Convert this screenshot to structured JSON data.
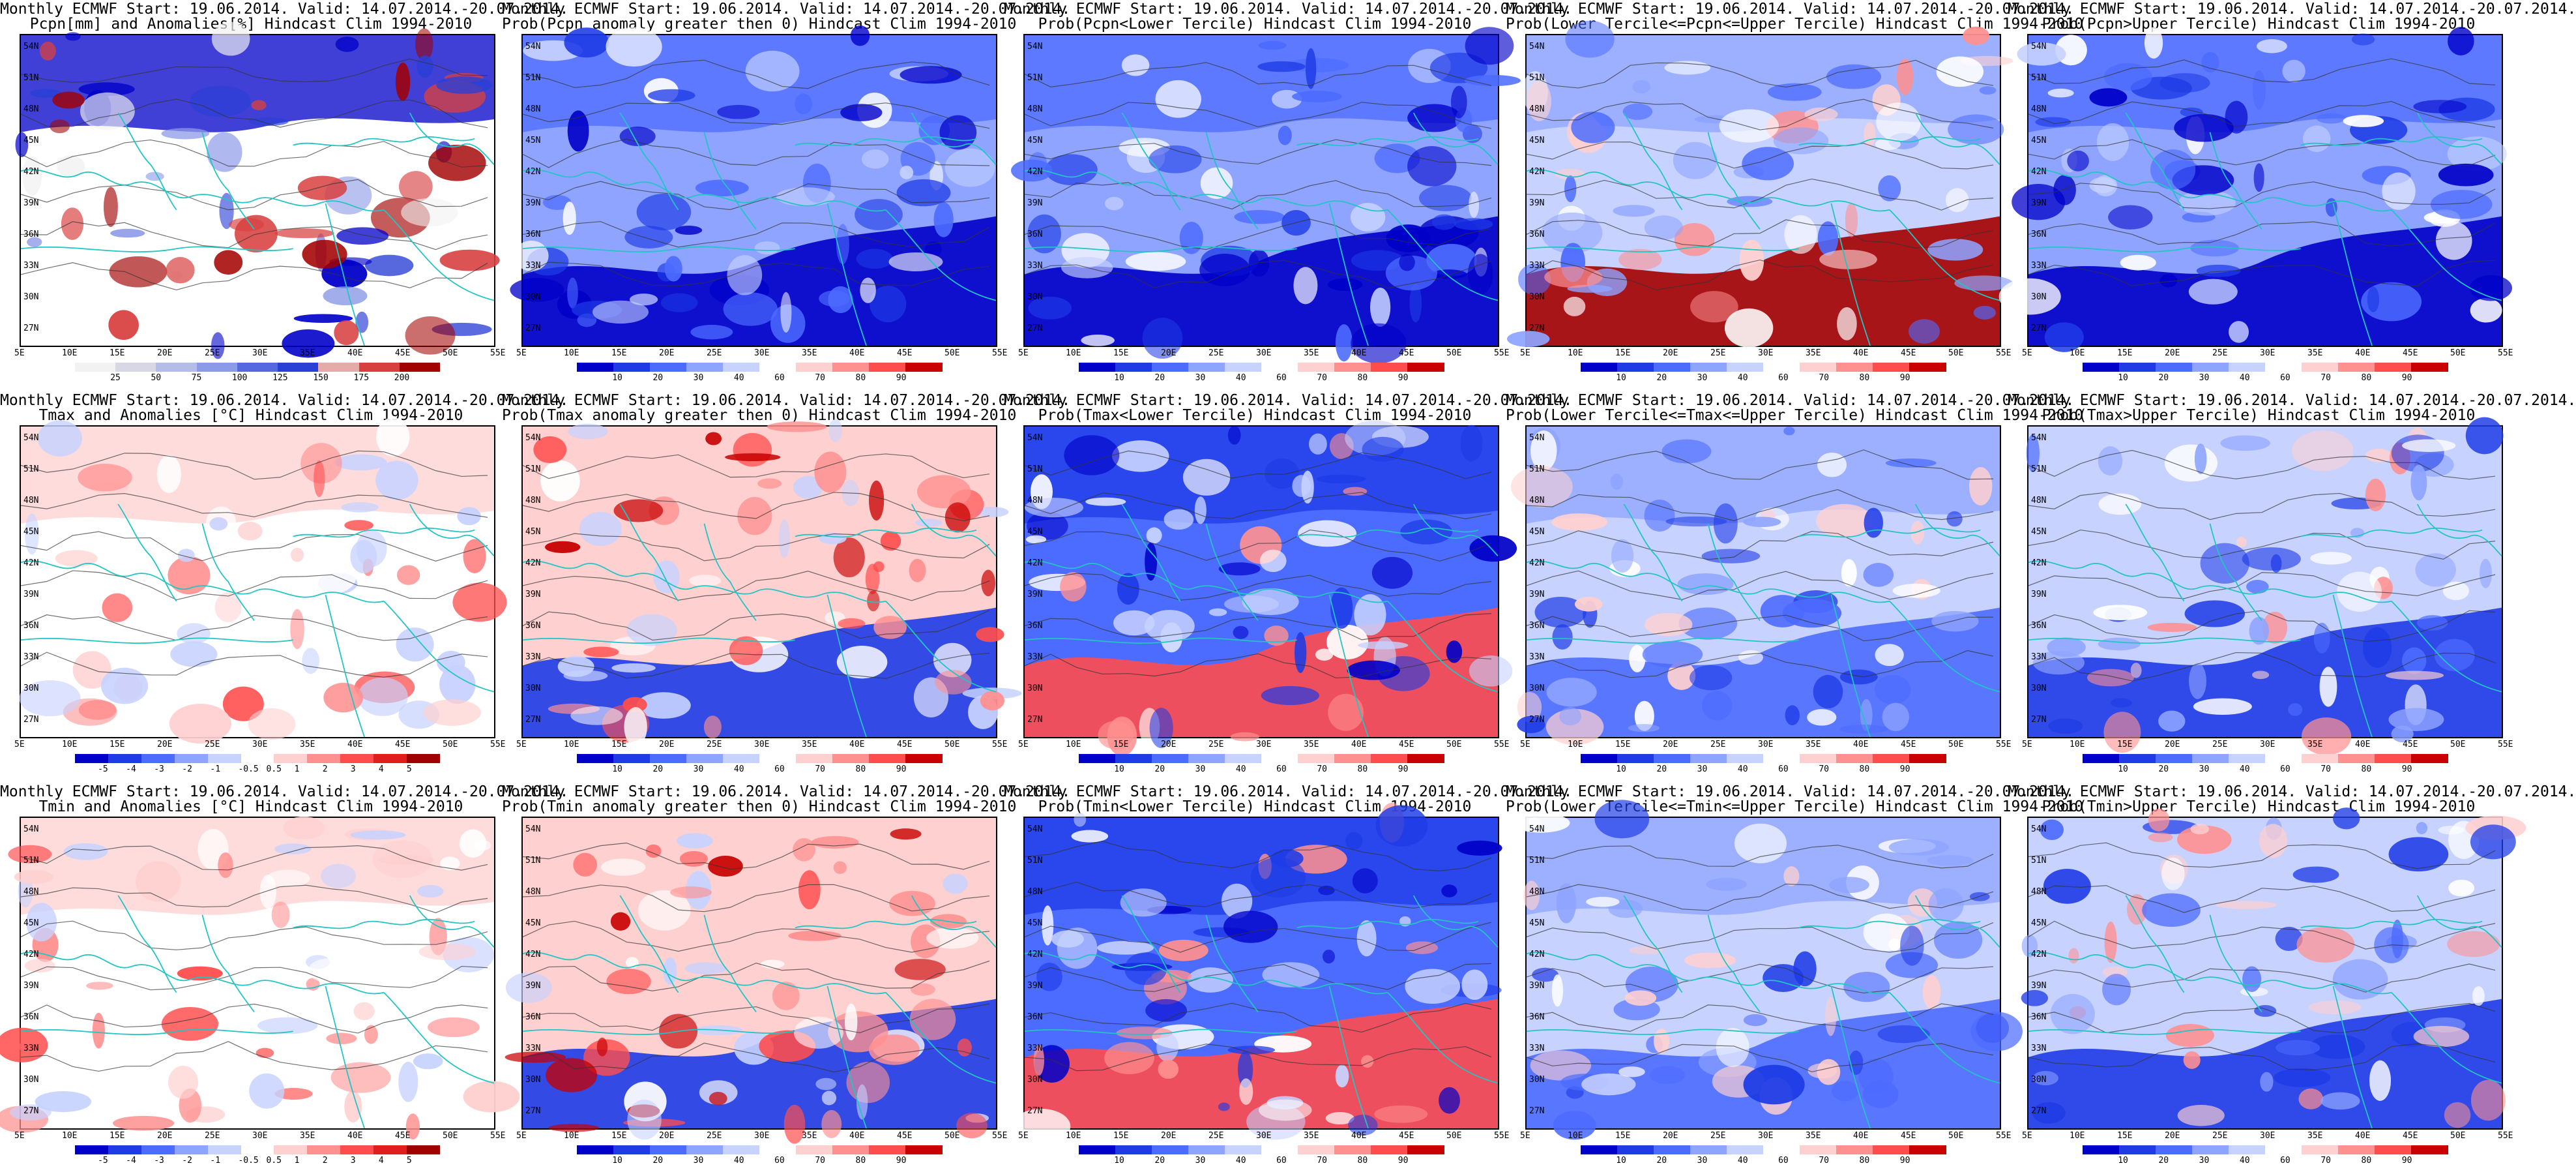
{
  "palette": {
    "precip_anom": [
      "#f2f2f2",
      "#d7d7e6",
      "#b3bde8",
      "#8c9ae8",
      "#5668e0",
      "#2a3fd6",
      "#e6aaaa",
      "#d84040",
      "#a30000"
    ],
    "prob": [
      "#0000c8",
      "#1e3be6",
      "#4c6bff",
      "#8ea4ff",
      "#c7d2ff",
      "#ffffff",
      "#ffd0d0",
      "#ff9090",
      "#ff4d4d",
      "#c80000"
    ],
    "temp_anom": [
      "#0000c8",
      "#1e3be6",
      "#4c6bff",
      "#8ea4ff",
      "#c7d2ff",
      "#ffffff",
      "#ffd0d0",
      "#ff9090",
      "#ff4d4d",
      "#e01e1e",
      "#a00000"
    ],
    "coast": "#22c4c4",
    "contour": "#333333"
  },
  "axes": {
    "lat_labels": [
      "54N",
      "51N",
      "48N",
      "45N",
      "42N",
      "39N",
      "36N",
      "33N",
      "30N",
      "27N"
    ],
    "lon_labels": [
      "5E",
      "10E",
      "15E",
      "20E",
      "25E",
      "30E",
      "35E",
      "40E",
      "45E",
      "50E",
      "55E"
    ]
  },
  "colorbars": {
    "precip": [
      "25",
      "50",
      "75",
      "100",
      "125",
      "150",
      "175",
      "200"
    ],
    "prob": [
      "10",
      "20",
      "30",
      "40",
      "60",
      "70",
      "80",
      "90"
    ],
    "temp": [
      "-5",
      "-4",
      "-3",
      "-2",
      "-1",
      "-0.5",
      "0.5",
      "1",
      "2",
      "3",
      "4",
      "5"
    ]
  },
  "panels": [
    {
      "line1": "Monthly ECMWF Start: 19.06.2014. Valid: 14.07.2014.-20.07.2014.",
      "line2": "Pcpn[mm] and Anomalies[%] Hindcast Clim 1994-2010",
      "scale": "precip",
      "style": "precip"
    },
    {
      "line1": "Monthly ECMWF Start: 19.06.2014. Valid: 14.07.2014.-20.07.2014.",
      "line2": "Prob(Pcpn anomaly greater then 0) Hindcast Clim 1994-2010",
      "scale": "prob",
      "style": "blue"
    },
    {
      "line1": "Monthly ECMWF Start: 19.06.2014. Valid: 14.07.2014.-20.07.2014.",
      "line2": "Prob(Pcpn<Lower Tercile) Hindcast Clim 1994-2010",
      "scale": "prob",
      "style": "blue"
    },
    {
      "line1": "Monthly ECMWF Start: 19.06.2014. Valid: 14.07.2014.-20.07.2014.",
      "line2": "Prob(Lower Tercile<=Pcpn<=Upper Tercile) Hindcast Clim 1994-2010",
      "scale": "prob",
      "style": "red_south"
    },
    {
      "line1": "Monthly ECMWF Start: 19.06.2014. Valid: 14.07.2014.-20.07.2014.",
      "line2": "Prob(Pcpn>Upper Tercile) Hindcast Clim 1994-2010",
      "scale": "prob",
      "style": "blue"
    },
    {
      "line1": "Monthly ECMWF Start: 19.06.2014. Valid: 14.07.2014.-20.07.2014.",
      "line2": "Tmax and Anomalies [°C] Hindcast Clim 1994-2010",
      "scale": "temp",
      "style": "warm_light"
    },
    {
      "line1": "Monthly ECMWF Start: 19.06.2014. Valid: 14.07.2014.-20.07.2014.",
      "line2": "Prob(Tmax anomaly greater then 0) Hindcast Clim 1994-2010",
      "scale": "prob",
      "style": "warm"
    },
    {
      "line1": "Monthly ECMWF Start: 19.06.2014. Valid: 14.07.2014.-20.07.2014.",
      "line2": "Prob(Tmax<Lower Tercile) Hindcast Clim 1994-2010",
      "scale": "prob",
      "style": "blue_mixed"
    },
    {
      "line1": "Monthly ECMWF Start: 19.06.2014. Valid: 14.07.2014.-20.07.2014.",
      "line2": "Prob(Lower Tercile<=Tmax<=Upper Tercile) Hindcast Clim 1994-2010",
      "scale": "prob",
      "style": "blue_light"
    },
    {
      "line1": "Monthly ECMWF Start: 19.06.2014. Valid: 14.07.2014.-20.07.2014.",
      "line2": "Prob(Tmax>Upper Tercile) Hindcast Clim 1994-2010",
      "scale": "prob",
      "style": "mixed"
    },
    {
      "line1": "Monthly ECMWF Start: 19.06.2014. Valid: 14.07.2014.-20.07.2014.",
      "line2": "Tmin and Anomalies [°C] Hindcast Clim 1994-2010",
      "scale": "temp",
      "style": "warm_light"
    },
    {
      "line1": "Monthly ECMWF Start: 19.06.2014. Valid: 14.07.2014.-20.07.2014.",
      "line2": "Prob(Tmin anomaly greater then 0) Hindcast Clim 1994-2010",
      "scale": "prob",
      "style": "warm"
    },
    {
      "line1": "Monthly ECMWF Start: 19.06.2014. Valid: 14.07.2014.-20.07.2014.",
      "line2": "Prob(Tmin<Lower Tercile) Hindcast Clim 1994-2010",
      "scale": "prob",
      "style": "blue_mixed"
    },
    {
      "line1": "Monthly ECMWF Start: 19.06.2014. Valid: 14.07.2014.-20.07.2014.",
      "line2": "Prob(Lower Tercile<=Tmin<=Upper Tercile) Hindcast Clim 1994-2010",
      "scale": "prob",
      "style": "blue_light"
    },
    {
      "line1": "Monthly ECMWF Start: 19.06.2014. Valid: 14.07.2014.-20.07.2014.",
      "line2": "Prob(Tmin>Upper Tercile) Hindcast Clim 1994-2010",
      "scale": "prob",
      "style": "mixed"
    }
  ]
}
